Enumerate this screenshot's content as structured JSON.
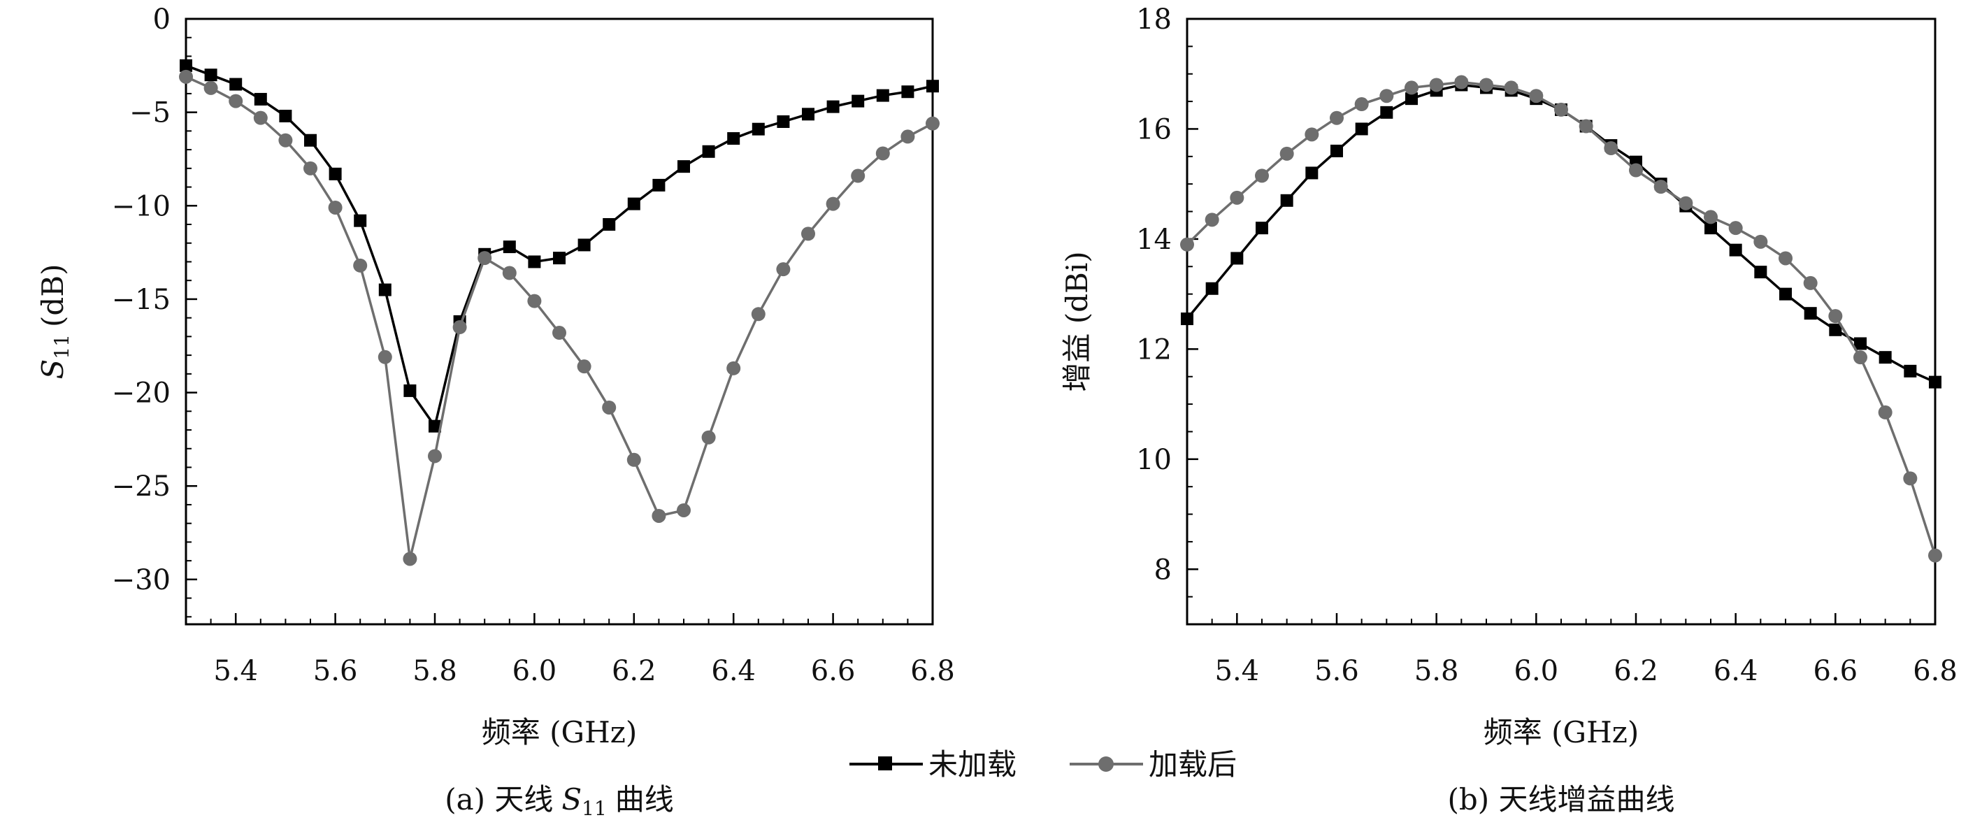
{
  "colors": {
    "unloaded": "#000000",
    "loaded": "#6e6e6e",
    "axis": "#000000"
  },
  "legend": {
    "items": [
      {
        "label": "未加载",
        "marker": "square"
      },
      {
        "label": "加载后",
        "marker": "circle"
      }
    ],
    "placement": "bottom-center"
  },
  "chart_data": [
    {
      "type": "line",
      "caption": "(a) 天线 S11 曲线",
      "caption_prefix": "(a) 天线",
      "caption_suffix": "曲线",
      "xlabel": "频率 (GHz)",
      "ylabel": "S11 (dB)",
      "ylabel_main": "S",
      "ylabel_sub": "11",
      "ylabel_unit": "(dB)",
      "xlim": [
        5.3,
        6.8
      ],
      "ylim": [
        -32.4,
        0
      ],
      "xticks": [
        "5.4",
        "5.6",
        "5.8",
        "6.0",
        "6.2",
        "6.4",
        "6.6",
        "6.8"
      ],
      "yticks": [
        "0",
        "−5",
        "−10",
        "−15",
        "−20",
        "−25",
        "−30"
      ],
      "x": [
        5.3,
        5.35,
        5.4,
        5.45,
        5.5,
        5.55,
        5.6,
        5.65,
        5.7,
        5.75,
        5.8,
        5.85,
        5.9,
        5.95,
        6.0,
        6.05,
        6.1,
        6.15,
        6.2,
        6.25,
        6.3,
        6.35,
        6.4,
        6.45,
        6.5,
        6.55,
        6.6,
        6.65,
        6.7,
        6.75,
        6.8
      ],
      "series": [
        {
          "name": "未加载",
          "values": [
            -2.5,
            -3.0,
            -3.5,
            -4.3,
            -5.2,
            -6.5,
            -8.3,
            -10.8,
            -14.5,
            -19.9,
            -21.8,
            -16.2,
            -12.6,
            -12.2,
            -13.0,
            -12.8,
            -12.1,
            -11.0,
            -9.9,
            -8.9,
            -7.9,
            -7.1,
            -6.4,
            -5.9,
            -5.5,
            -5.1,
            -4.7,
            -4.4,
            -4.1,
            -3.9,
            -3.6
          ]
        },
        {
          "name": "加载后",
          "values": [
            -3.1,
            -3.7,
            -4.4,
            -5.3,
            -6.5,
            -8.0,
            -10.1,
            -13.2,
            -18.1,
            -28.9,
            -23.4,
            -16.5,
            -12.8,
            -13.6,
            -15.1,
            -16.8,
            -18.6,
            -20.8,
            -23.6,
            -26.6,
            -26.3,
            -22.4,
            -18.7,
            -15.8,
            -13.4,
            -11.5,
            -9.9,
            -8.4,
            -7.2,
            -6.3,
            -5.6
          ]
        }
      ]
    },
    {
      "type": "line",
      "caption": "(b) 天线增益曲线",
      "xlabel": "频率 (GHz)",
      "ylabel": "增益 (dBi)",
      "xlim": [
        5.3,
        6.8
      ],
      "ylim": [
        7,
        18
      ],
      "xticks": [
        "5.4",
        "5.6",
        "5.8",
        "6.0",
        "6.2",
        "6.4",
        "6.6",
        "6.8"
      ],
      "yticks": [
        "8",
        "10",
        "12",
        "14",
        "16",
        "18"
      ],
      "x": [
        5.3,
        5.35,
        5.4,
        5.45,
        5.5,
        5.55,
        5.6,
        5.65,
        5.7,
        5.75,
        5.8,
        5.85,
        5.9,
        5.95,
        6.0,
        6.05,
        6.1,
        6.15,
        6.2,
        6.25,
        6.3,
        6.35,
        6.4,
        6.45,
        6.5,
        6.55,
        6.6,
        6.65,
        6.7,
        6.75,
        6.8
      ],
      "series": [
        {
          "name": "未加载",
          "values": [
            12.55,
            13.1,
            13.65,
            14.2,
            14.7,
            15.2,
            15.6,
            16.0,
            16.3,
            16.55,
            16.7,
            16.8,
            16.75,
            16.7,
            16.55,
            16.35,
            16.05,
            15.7,
            15.4,
            15.0,
            14.6,
            14.2,
            13.8,
            13.4,
            13.0,
            12.65,
            12.35,
            12.1,
            11.85,
            11.6,
            11.4
          ]
        },
        {
          "name": "加载后",
          "values": [
            13.9,
            14.35,
            14.75,
            15.15,
            15.55,
            15.9,
            16.2,
            16.45,
            16.6,
            16.75,
            16.8,
            16.85,
            16.8,
            16.75,
            16.6,
            16.35,
            16.05,
            15.65,
            15.25,
            14.95,
            14.65,
            14.4,
            14.2,
            13.95,
            13.65,
            13.2,
            12.6,
            11.85,
            10.85,
            9.65,
            8.25
          ]
        }
      ]
    }
  ]
}
